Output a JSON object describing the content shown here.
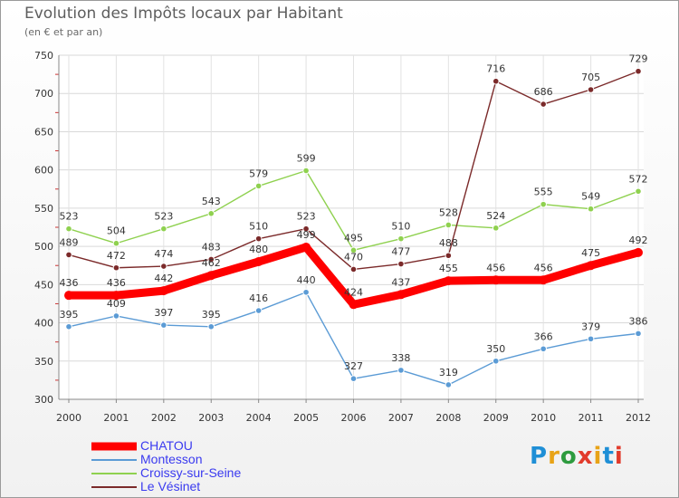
{
  "header": {
    "title": "Evolution des Impôts locaux par Habitant",
    "subtitle": "(en € et par an)"
  },
  "logo": {
    "text": "Proxiti",
    "letter_colors": [
      "#1f8fd6",
      "#e8a317",
      "#2e9b3f",
      "#e23b2c",
      "#e8a317",
      "#1f8fd6",
      "#e23b2c"
    ]
  },
  "chart_data": {
    "type": "line",
    "title": "Evolution des Impôts locaux par Habitant",
    "subtitle": "(en € et par an)",
    "xlabel": "",
    "ylabel": "",
    "x": [
      2000,
      2001,
      2002,
      2003,
      2004,
      2005,
      2006,
      2007,
      2008,
      2009,
      2010,
      2011,
      2012
    ],
    "ylim": [
      300,
      750
    ],
    "yticks": [
      300,
      350,
      400,
      450,
      500,
      550,
      600,
      650,
      700,
      750
    ],
    "grid": true,
    "legend_position": "bottom-left",
    "series": [
      {
        "name": "CHATOU",
        "color": "#ff0000",
        "emphasis": true,
        "values": [
          436,
          436,
          442,
          462,
          480,
          499,
          424,
          437,
          455,
          456,
          456,
          475,
          492
        ]
      },
      {
        "name": "Montesson",
        "color": "#5b9bd5",
        "values": [
          395,
          409,
          397,
          395,
          416,
          440,
          327,
          338,
          319,
          350,
          366,
          379,
          386
        ]
      },
      {
        "name": "Croissy-sur-Seine",
        "color": "#8fd14f",
        "values": [
          523,
          504,
          523,
          543,
          579,
          599,
          495,
          510,
          528,
          524,
          555,
          549,
          572
        ]
      },
      {
        "name": "Le Vésinet",
        "color": "#7b2a2a",
        "values": [
          489,
          472,
          474,
          483,
          510,
          523,
          470,
          477,
          488,
          716,
          686,
          705,
          729
        ]
      }
    ]
  }
}
